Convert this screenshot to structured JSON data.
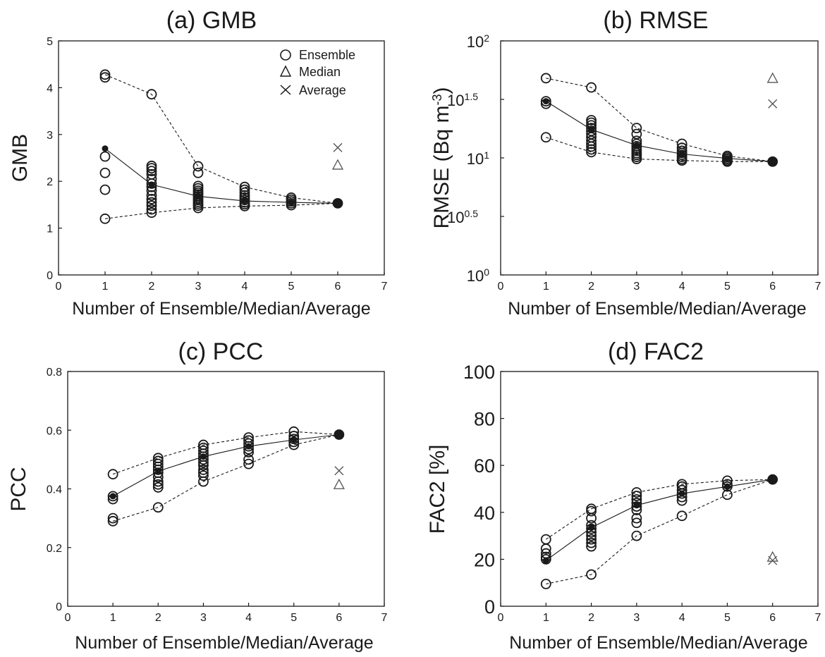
{
  "legend": {
    "ensemble": "Ensemble",
    "median": "Median",
    "average": "Average"
  },
  "chart_data": [
    {
      "type": "scatter",
      "title": "(a) GMB",
      "xlabel": "Number of Ensemble/Median/Average",
      "ylabel": "GMB",
      "xlim": [
        0,
        7
      ],
      "ylim": [
        0,
        5
      ],
      "xticks": [
        "0",
        "1",
        "2",
        "3",
        "4",
        "5",
        "6",
        "7"
      ],
      "yticks": [
        "0",
        "1",
        "2",
        "3",
        "4",
        "5"
      ],
      "legend_position": "top-right",
      "ensemble_points": {
        "1": [
          1.2,
          1.82,
          2.18,
          2.53,
          4.22,
          4.28
        ],
        "2": [
          1.33,
          1.4,
          1.48,
          1.55,
          1.62,
          1.7,
          1.8,
          1.88,
          1.95,
          2.05,
          2.15,
          2.22,
          2.28,
          2.33,
          3.86
        ],
        "3": [
          1.43,
          1.48,
          1.52,
          1.56,
          1.6,
          1.64,
          1.68,
          1.72,
          1.76,
          1.8,
          1.85,
          1.9,
          2.18,
          2.32
        ],
        "4": [
          1.47,
          1.51,
          1.55,
          1.6,
          1.65,
          1.7,
          1.76,
          1.82,
          1.88
        ],
        "5": [
          1.49,
          1.53,
          1.57,
          1.61,
          1.65
        ],
        "6": [
          1.53
        ]
      },
      "mean_line": {
        "x": [
          1,
          2,
          3,
          4,
          5,
          6
        ],
        "y": [
          2.7,
          1.93,
          1.68,
          1.58,
          1.55,
          1.53
        ]
      },
      "max_line": {
        "x": [
          1,
          2,
          3,
          4,
          5,
          6
        ],
        "y": [
          4.28,
          3.86,
          2.32,
          1.88,
          1.65,
          1.53
        ]
      },
      "min_line": {
        "x": [
          1,
          2,
          3,
          4,
          5,
          6
        ],
        "y": [
          1.2,
          1.33,
          1.43,
          1.47,
          1.49,
          1.53
        ]
      },
      "median": {
        "x": 6,
        "y": 2.35
      },
      "average": {
        "x": 6,
        "y": 2.72
      }
    },
    {
      "type": "scatter",
      "title": "(b) RMSE",
      "xlabel": "Number of Ensemble/Median/Average",
      "ylabel": "RMSE (Bq m",
      "ylabel_sup": "-3",
      "ylabel_close": ")",
      "yscale": "log",
      "xlim": [
        0,
        7
      ],
      "ylim": [
        1,
        100
      ],
      "xticks": [
        "0",
        "1",
        "2",
        "3",
        "4",
        "5",
        "6",
        "7"
      ],
      "yticks": [
        {
          "base": "10",
          "exp": "0",
          "value": 1
        },
        {
          "base": "10",
          "exp": "0.5",
          "value": 3.162
        },
        {
          "base": "10",
          "exp": "1",
          "value": 10
        },
        {
          "base": "10",
          "exp": "1.5",
          "value": 31.62
        },
        {
          "base": "10",
          "exp": "2",
          "value": 100
        }
      ],
      "ensemble_points": {
        "1": [
          15,
          29,
          30.5,
          48
        ],
        "2": [
          11.2,
          11.8,
          12.5,
          13.2,
          14,
          15,
          16,
          17,
          18,
          19,
          20,
          21,
          40
        ],
        "3": [
          9.8,
          10.2,
          10.6,
          11,
          11.5,
          12,
          12.6,
          13.2,
          14,
          16,
          18
        ],
        "4": [
          9.5,
          9.8,
          10.2,
          10.6,
          11,
          11.5,
          12.2,
          13.2
        ],
        "5": [
          9.3,
          9.5,
          9.8,
          10.1,
          10.4
        ],
        "6": [
          9.3
        ]
      },
      "mean_line": {
        "x": [
          1,
          2,
          3,
          4,
          5,
          6
        ],
        "y": [
          30.5,
          17.5,
          12.8,
          10.8,
          9.9,
          9.3
        ]
      },
      "max_line": {
        "x": [
          1,
          2,
          3,
          4,
          5,
          6
        ],
        "y": [
          48,
          40,
          18,
          13.2,
          10.4,
          9.3
        ]
      },
      "min_line": {
        "x": [
          1,
          2,
          3,
          4,
          5,
          6
        ],
        "y": [
          15,
          11.2,
          9.8,
          9.5,
          9.3,
          9.3
        ]
      },
      "median": {
        "x": 6,
        "y": 48
      },
      "average": {
        "x": 6,
        "y": 29
      }
    },
    {
      "type": "scatter",
      "title": "(c) PCC",
      "xlabel": "Number of Ensemble/Median/Average",
      "ylabel": "PCC",
      "xlim": [
        0,
        7
      ],
      "ylim": [
        0,
        0.8
      ],
      "xticks": [
        "0",
        "1",
        "2",
        "3",
        "4",
        "5",
        "6",
        "7"
      ],
      "yticks": [
        "0",
        "0.2",
        "0.4",
        "0.6",
        "0.8"
      ],
      "ensemble_points": {
        "1": [
          0.29,
          0.3,
          0.365,
          0.375,
          0.45
        ],
        "2": [
          0.337,
          0.405,
          0.415,
          0.425,
          0.44,
          0.455,
          0.465,
          0.475,
          0.485,
          0.495,
          0.505
        ],
        "3": [
          0.425,
          0.445,
          0.455,
          0.465,
          0.48,
          0.49,
          0.5,
          0.51,
          0.52,
          0.53,
          0.54,
          0.55
        ],
        "4": [
          0.485,
          0.5,
          0.525,
          0.535,
          0.545,
          0.555,
          0.565,
          0.575
        ],
        "5": [
          0.55,
          0.56,
          0.57,
          0.58,
          0.595
        ],
        "6": [
          0.585
        ]
      },
      "mean_line": {
        "x": [
          1,
          2,
          3,
          4,
          5,
          6
        ],
        "y": [
          0.375,
          0.46,
          0.51,
          0.545,
          0.567,
          0.585
        ]
      },
      "max_line": {
        "x": [
          1,
          2,
          3,
          4,
          5,
          6
        ],
        "y": [
          0.45,
          0.505,
          0.55,
          0.575,
          0.595,
          0.585
        ]
      },
      "min_line": {
        "x": [
          1,
          2,
          3,
          4,
          5,
          6
        ],
        "y": [
          0.29,
          0.337,
          0.425,
          0.485,
          0.55,
          0.585
        ]
      },
      "median": {
        "x": 6,
        "y": 0.415
      },
      "average": {
        "x": 6,
        "y": 0.462
      }
    },
    {
      "type": "scatter",
      "title": "(d) FAC2",
      "xlabel": "Number of Ensemble/Median/Average",
      "ylabel": "FAC2 [%]",
      "xlim": [
        0,
        7
      ],
      "ylim": [
        0,
        100
      ],
      "xticks": [
        "0",
        "1",
        "2",
        "3",
        "4",
        "5",
        "6",
        "7"
      ],
      "yticks": [
        "0",
        "20",
        "40",
        "60",
        "80",
        "100"
      ],
      "ensemble_points": {
        "1": [
          9.5,
          20,
          21,
          22.5,
          24.5,
          28.5
        ],
        "2": [
          13.5,
          25.5,
          27,
          28.5,
          30,
          31.5,
          33,
          34.5,
          37.5,
          40.5,
          41.5
        ],
        "3": [
          30,
          35.5,
          37.5,
          41,
          42.5,
          44,
          45.5,
          47,
          48.5
        ],
        "4": [
          38.5,
          45,
          46.5,
          48,
          49.5,
          51,
          52
        ],
        "5": [
          47.5,
          51,
          52,
          53.5
        ],
        "6": [
          54
        ]
      },
      "mean_line": {
        "x": [
          1,
          2,
          3,
          4,
          5,
          6
        ],
        "y": [
          19.5,
          33.5,
          43,
          48,
          51,
          54
        ]
      },
      "max_line": {
        "x": [
          1,
          2,
          3,
          4,
          5,
          6
        ],
        "y": [
          28.5,
          41.5,
          48.5,
          52,
          53.5,
          54
        ]
      },
      "min_line": {
        "x": [
          1,
          2,
          3,
          4,
          5,
          6
        ],
        "y": [
          9.5,
          13.5,
          30,
          38.5,
          47.5,
          54
        ]
      },
      "median": {
        "x": 6,
        "y": 21
      },
      "average": {
        "x": 6,
        "y": 19.5
      }
    }
  ]
}
